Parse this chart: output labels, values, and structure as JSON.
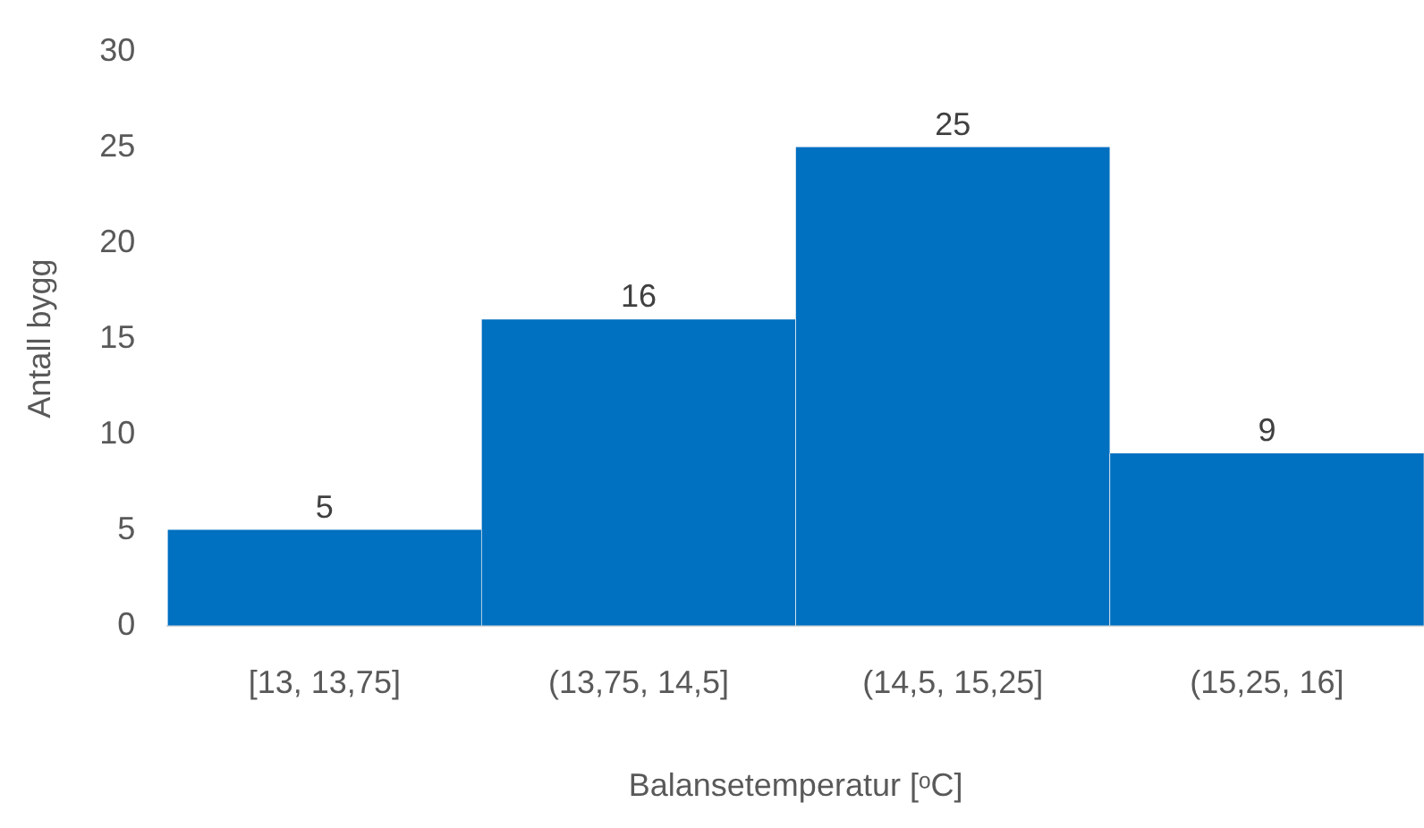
{
  "chart_data": {
    "type": "bar",
    "xlabel": "Balansetemperatur [ᵒC]",
    "ylabel": "Antall bygg",
    "categories": [
      "[13, 13,75]",
      "(13,75, 14,5]",
      "(14,5, 15,25]",
      "(15,25, 16]"
    ],
    "values": [
      5,
      16,
      25,
      9
    ],
    "color": "#0070c0",
    "ylim": [
      0,
      30
    ],
    "yticks": [
      0,
      5,
      10,
      15,
      20,
      25,
      30
    ],
    "grid": false,
    "legend": false,
    "data_labels": true
  }
}
